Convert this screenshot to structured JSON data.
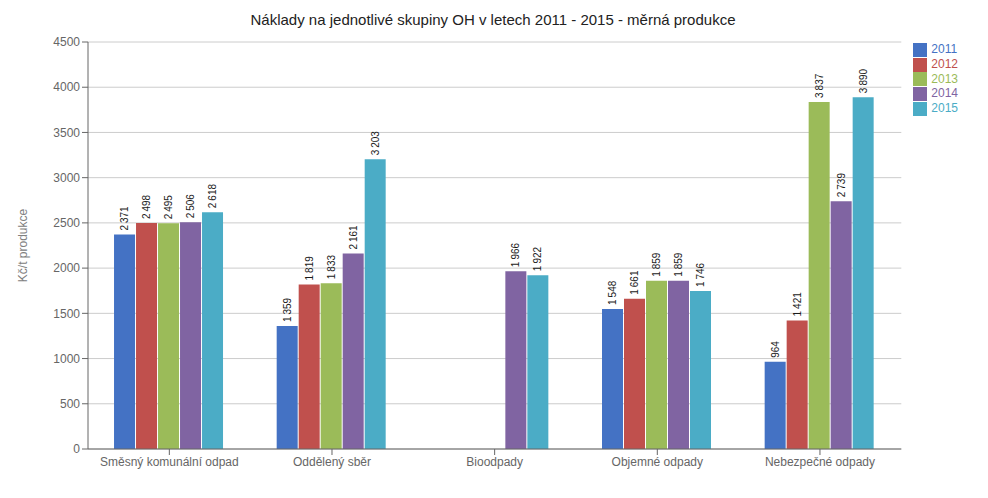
{
  "chart_data": {
    "type": "bar",
    "title": "Náklady na jednotlivé skupiny OH v letech 2011 - 2015 - měrná produkce",
    "y_label": "Kč/t produkce",
    "categories": [
      "Směsný komunální odpad",
      "Oddělený sběr",
      "Bioodpady",
      "Objemné odpady",
      "Nebezpečné odpady"
    ],
    "series": [
      {
        "name": "2011",
        "color": "#4472C4",
        "values": [
          2371,
          1359,
          null,
          1548,
          964
        ],
        "value_labels": [
          "2 371",
          "1 359",
          null,
          "1 548",
          "964"
        ]
      },
      {
        "name": "2012",
        "color": "#C0504D",
        "values": [
          2498,
          1819,
          null,
          1661,
          1421
        ],
        "value_labels": [
          "2 498",
          "1 819",
          null,
          "1 661",
          "1 421"
        ]
      },
      {
        "name": "2013",
        "color": "#9BBB59",
        "values": [
          2495,
          1833,
          null,
          1859,
          3837
        ],
        "value_labels": [
          "2 495",
          "1 833",
          null,
          "1 859",
          "3 837"
        ]
      },
      {
        "name": "2014",
        "color": "#8064A2",
        "values": [
          2506,
          2161,
          1966,
          1859,
          2739
        ],
        "value_labels": [
          "2 506",
          "2 161",
          "1 966",
          "1 859",
          "2 739"
        ]
      },
      {
        "name": "2015",
        "color": "#4BACC6",
        "values": [
          2618,
          3203,
          1922,
          1746,
          3890
        ],
        "value_labels": [
          "2 618",
          "3 203",
          "1 922",
          "1 746",
          "3 890"
        ]
      }
    ],
    "ylim": [
      0,
      4500
    ],
    "yticks": [
      0,
      500,
      1000,
      1500,
      2000,
      2500,
      3000,
      3500,
      4000,
      4500
    ],
    "grid": true,
    "legend": "upper right",
    "data_labels": true
  }
}
